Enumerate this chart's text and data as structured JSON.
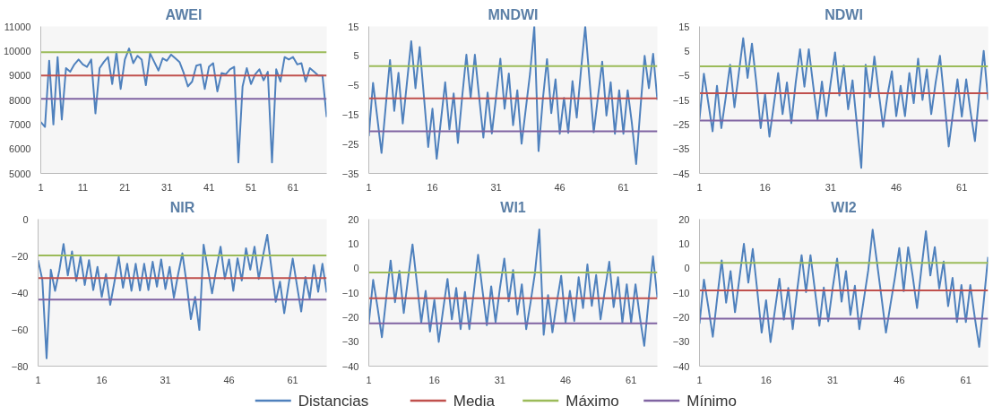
{
  "chart_data": [
    {
      "type": "line",
      "title": "AWEI",
      "legend": "bottom",
      "x": [
        1,
        2,
        3,
        4,
        5,
        6,
        7,
        8,
        9,
        10,
        11,
        12,
        13,
        14,
        15,
        16,
        17,
        18,
        19,
        20,
        21,
        22,
        23,
        24,
        25,
        26,
        27,
        28,
        29,
        30,
        31,
        32,
        33,
        34,
        35,
        36,
        37,
        38,
        39,
        40,
        41,
        42,
        43,
        44,
        45,
        46,
        47,
        48,
        49,
        50,
        51,
        52,
        53,
        54,
        55,
        56,
        57,
        58,
        59,
        60,
        61,
        62,
        63,
        64,
        65,
        66,
        67,
        68,
        69
      ],
      "xlim": [
        1,
        69
      ],
      "xticks": [
        1,
        11,
        21,
        31,
        41,
        51,
        61
      ],
      "ylim": [
        5000,
        11000
      ],
      "yticks": [
        5000,
        6000,
        7000,
        8000,
        9000,
        10000,
        11000
      ],
      "series": [
        {
          "name": "Distancias",
          "color": "#4f81bd",
          "values": [
            7100,
            6900,
            9600,
            7000,
            9750,
            7200,
            9300,
            9150,
            9450,
            9650,
            9450,
            9350,
            9650,
            7450,
            9300,
            9550,
            9750,
            8650,
            9950,
            8450,
            9650,
            10100,
            9500,
            9800,
            9650,
            8600,
            9900,
            9550,
            9200,
            9700,
            9600,
            9850,
            9700,
            9550,
            9100,
            8550,
            8750,
            9400,
            9450,
            8450,
            9350,
            9500,
            8350,
            9100,
            9050,
            9250,
            9350,
            5450,
            8550,
            9300,
            8650,
            9050,
            9250,
            8800,
            9150,
            5450,
            9250,
            8750,
            9750,
            9650,
            9750,
            9450,
            9500,
            8750,
            9300,
            9150,
            9000,
            9000,
            7300
          ]
        },
        {
          "name": "Media",
          "color": "#c0504d",
          "x": [
            1,
            69
          ],
          "values": [
            9000,
            9000
          ]
        },
        {
          "name": "Máximo",
          "color": "#9bbb59",
          "x": [
            1,
            69
          ],
          "values": [
            9950,
            9950
          ]
        },
        {
          "name": "Mínimo",
          "color": "#8064a2",
          "x": [
            1,
            69
          ],
          "values": [
            8050,
            8050
          ]
        }
      ]
    },
    {
      "type": "line",
      "title": "MNDWI",
      "x": [
        1,
        2,
        3,
        4,
        5,
        6,
        7,
        8,
        9,
        10,
        11,
        12,
        13,
        14,
        15,
        16,
        17,
        18,
        19,
        20,
        21,
        22,
        23,
        24,
        25,
        26,
        27,
        28,
        29,
        30,
        31,
        32,
        33,
        34,
        35,
        36,
        37,
        38,
        39,
        40,
        41,
        42,
        43,
        44,
        45,
        46,
        47,
        48,
        49,
        50,
        51,
        52,
        53,
        54,
        55,
        56,
        57,
        58,
        59,
        60,
        61,
        62,
        63,
        64,
        65,
        66,
        67,
        68,
        69
      ],
      "xlim": [
        1,
        69
      ],
      "xticks": [
        1,
        16,
        31,
        46,
        61
      ],
      "ylim": [
        -35,
        15
      ],
      "yticks": [
        -35,
        -25,
        -15,
        -5,
        5,
        15
      ],
      "series": [
        {
          "color": "#4f81bd",
          "values": [
            -22.3,
            -4.2,
            -16,
            -28,
            -12,
            3.6,
            -13.7,
            -0.8,
            -18,
            -4,
            10,
            -6,
            8,
            -9,
            -26,
            -13,
            -30,
            -17,
            -4,
            -20,
            -7.8,
            -24.6,
            -9,
            5.4,
            -9.3,
            5.4,
            -9,
            -22.8,
            -7.5,
            -21.4,
            -9,
            4,
            -13,
            -1,
            -18.6,
            -6.7,
            -24.9,
            -13,
            -1,
            15,
            -27.4,
            -10,
            3.9,
            -14.5,
            -3,
            -21.5,
            -9.3,
            -21.2,
            -3.6,
            -16,
            0,
            15,
            -3,
            -21,
            -9,
            3,
            -15.3,
            -4,
            -21.5,
            -6.7,
            -21.5,
            -6.7,
            -18,
            -31.8,
            -13,
            5,
            -6,
            5.7,
            -10
          ]
        },
        {
          "color": "#c0504d",
          "x": [
            1,
            69
          ],
          "values": [
            -9.5,
            -9.5
          ]
        },
        {
          "color": "#9bbb59",
          "x": [
            1,
            69
          ],
          "values": [
            1.5,
            1.5
          ]
        },
        {
          "color": "#8064a2",
          "x": [
            1,
            69
          ],
          "values": [
            -20.7,
            -20.7
          ]
        }
      ]
    },
    {
      "type": "line",
      "title": "NDWI",
      "x": [
        1,
        2,
        3,
        4,
        5,
        6,
        7,
        8,
        9,
        10,
        11,
        12,
        13,
        14,
        15,
        16,
        17,
        18,
        19,
        20,
        21,
        22,
        23,
        24,
        25,
        26,
        27,
        28,
        29,
        30,
        31,
        32,
        33,
        34,
        35,
        36,
        37,
        38,
        39,
        40,
        41,
        42,
        43,
        44,
        45,
        46,
        47,
        48,
        49,
        50,
        51,
        52,
        53,
        54,
        55,
        56,
        57,
        58,
        59,
        60,
        61,
        62,
        63,
        64,
        65,
        66,
        67
      ],
      "xlim": [
        1,
        67
      ],
      "xticks": [
        1,
        16,
        31,
        46,
        61
      ],
      "ylim": [
        -45,
        15
      ],
      "yticks": [
        -45,
        -35,
        -25,
        -15,
        -5,
        5,
        15
      ],
      "series": [
        {
          "color": "#4f81bd",
          "values": [
            -22.9,
            -4.3,
            -16,
            -27.8,
            -9.2,
            -26.5,
            -14,
            -0.6,
            -18,
            -4,
            10.2,
            -6,
            8,
            -8,
            -26.5,
            -12.5,
            -30,
            -17,
            -4,
            -20.8,
            -7.9,
            -24.5,
            -8,
            5.7,
            -9.6,
            5.7,
            -9,
            -22.9,
            -7.5,
            -21.6,
            -8,
            4.4,
            -13.2,
            -0.9,
            -18.8,
            -7,
            -25,
            -42.7,
            -0.6,
            -13.9,
            2.7,
            -12,
            -26,
            -13,
            -3.3,
            -21.6,
            -9.2,
            -21.6,
            -4,
            -16.3,
            1.8,
            -15,
            -2.6,
            -20.8,
            -8,
            3,
            -15,
            -34,
            -20,
            -6.6,
            -21.8,
            -6.6,
            -20,
            -31.8,
            -12,
            5,
            -15
          ]
        },
        {
          "color": "#c0504d",
          "x": [
            1,
            67
          ],
          "values": [
            -12.3,
            -12.3
          ]
        },
        {
          "color": "#9bbb59",
          "x": [
            1,
            67
          ],
          "values": [
            -1.3,
            -1.3
          ]
        },
        {
          "color": "#8064a2",
          "x": [
            1,
            67
          ],
          "values": [
            -23.4,
            -23.4
          ]
        }
      ]
    },
    {
      "type": "line",
      "title": "NIR",
      "x": [
        1,
        2,
        3,
        4,
        5,
        6,
        7,
        8,
        9,
        10,
        11,
        12,
        13,
        14,
        15,
        16,
        17,
        18,
        19,
        20,
        21,
        22,
        23,
        24,
        25,
        26,
        27,
        28,
        29,
        30,
        31,
        32,
        33,
        34,
        35,
        36,
        37,
        38,
        39,
        40,
        41,
        42,
        43,
        44,
        45,
        46,
        47,
        48,
        49,
        50,
        51,
        52,
        53,
        54,
        55,
        56,
        57,
        58,
        59,
        60,
        61,
        62,
        63,
        64,
        65,
        66,
        67,
        68,
        69
      ],
      "xlim": [
        1,
        69
      ],
      "xticks": [
        1,
        16,
        31,
        46,
        61
      ],
      "ylim": [
        -80,
        0
      ],
      "yticks": [
        -80,
        -60,
        -40,
        -20,
        0
      ],
      "series": [
        {
          "color": "#4f81bd",
          "values": [
            -22.3,
            -33,
            -75.7,
            -27.5,
            -39,
            -28,
            -13.5,
            -30.6,
            -17.6,
            -33.6,
            -20.4,
            -35.8,
            -22.3,
            -38.6,
            -26,
            -42.3,
            -29.9,
            -46.6,
            -34,
            -20.6,
            -37.3,
            -24.3,
            -39,
            -24.3,
            -38.8,
            -24.3,
            -38.6,
            -23.2,
            -36.7,
            -21.9,
            -38,
            -26,
            -42.7,
            -30,
            -18.6,
            -35,
            -54.4,
            -42.3,
            -60.3,
            -13.9,
            -27,
            -40.4,
            -27,
            -15,
            -32.5,
            -21.9,
            -39,
            -21.3,
            -33.4,
            -15.8,
            -27.5,
            -15,
            -32.5,
            -20,
            -8.5,
            -27,
            -45,
            -34,
            -51.2,
            -36,
            -21.5,
            -36,
            -50.3,
            -31.5,
            -43.2,
            -25,
            -39.5,
            -24.3,
            -39.9
          ]
        },
        {
          "color": "#c0504d",
          "x": [
            1,
            69
          ],
          "values": [
            -32.1,
            -32.1
          ]
        },
        {
          "color": "#9bbb59",
          "x": [
            1,
            69
          ],
          "values": [
            -19.7,
            -19.7
          ]
        },
        {
          "color": "#8064a2",
          "x": [
            1,
            69
          ],
          "values": [
            -43.8,
            -43.8
          ]
        }
      ]
    },
    {
      "type": "line",
      "title": "WI1",
      "x": [
        1,
        2,
        3,
        4,
        5,
        6,
        7,
        8,
        9,
        10,
        11,
        12,
        13,
        14,
        15,
        16,
        17,
        18,
        19,
        20,
        21,
        22,
        23,
        24,
        25,
        26,
        27,
        28,
        29,
        30,
        31,
        32,
        33,
        34,
        35,
        36,
        37,
        38,
        39,
        40,
        41,
        42,
        43,
        44,
        45,
        46,
        47,
        48,
        49,
        50,
        51,
        52,
        53,
        54,
        55,
        56,
        57,
        58,
        59,
        60,
        61,
        62,
        63,
        64,
        65,
        66,
        67
      ],
      "xlim": [
        1,
        67
      ],
      "xticks": [
        1,
        16,
        31,
        46,
        61
      ],
      "ylim": [
        -40,
        20
      ],
      "yticks": [
        -40,
        -30,
        -20,
        -10,
        0,
        10,
        20
      ],
      "series": [
        {
          "color": "#4f81bd",
          "values": [
            -22.5,
            -4.8,
            -16,
            -28.2,
            -12,
            3.1,
            -13.9,
            -1.1,
            -18.3,
            -4,
            9.7,
            -6,
            -22.2,
            -9.3,
            -25.9,
            -13,
            -30.1,
            -17,
            -4.4,
            -20.9,
            -8.1,
            -24.9,
            -9.7,
            -24.9,
            -10,
            5.5,
            -9,
            -23.3,
            -7.4,
            -22,
            -8,
            3.9,
            -13.6,
            -0.8,
            -18.9,
            -6.6,
            -24.9,
            -14,
            -2,
            15.8,
            -27.2,
            -11,
            -26.2,
            -14,
            -3.1,
            -22.2,
            -9.3,
            -21.6,
            -3.7,
            -16.3,
            1.5,
            -15.4,
            -2.8,
            -20.9,
            -9,
            2.6,
            -15.9,
            -3.7,
            -22.2,
            -6.6,
            -22.2,
            -6.6,
            -20,
            -31.7,
            -13,
            4.8,
            -12
          ]
        },
        {
          "color": "#c0504d",
          "x": [
            1,
            67
          ],
          "values": [
            -12.3,
            -12.3
          ]
        },
        {
          "color": "#9bbb59",
          "x": [
            1,
            67
          ],
          "values": [
            -1.8,
            -1.8
          ]
        },
        {
          "color": "#8064a2",
          "x": [
            1,
            67
          ],
          "values": [
            -22.5,
            -22.5
          ]
        }
      ]
    },
    {
      "type": "line",
      "title": "WI2",
      "x": [
        1,
        2,
        3,
        4,
        5,
        6,
        7,
        8,
        9,
        10,
        11,
        12,
        13,
        14,
        15,
        16,
        17,
        18,
        19,
        20,
        21,
        22,
        23,
        24,
        25,
        26,
        27,
        28,
        29,
        30,
        31,
        32,
        33,
        34,
        35,
        36,
        37,
        38,
        39,
        40,
        41,
        42,
        43,
        44,
        45,
        46,
        47,
        48,
        49,
        50,
        51,
        52,
        53,
        54,
        55,
        56,
        57,
        58,
        59,
        60,
        61,
        62,
        63,
        64,
        65,
        66
      ],
      "xlim": [
        1,
        66
      ],
      "xticks": [
        1,
        16,
        31,
        46,
        61
      ],
      "ylim": [
        -40,
        20
      ],
      "yticks": [
        -40,
        -30,
        -20,
        -10,
        0,
        10,
        20
      ],
      "series": [
        {
          "color": "#4f81bd",
          "values": [
            -22.7,
            -4.7,
            -16,
            -28,
            -12,
            3.2,
            -14.1,
            -1.2,
            -18,
            -4,
            9.9,
            -5.9,
            7.8,
            -9,
            -26.3,
            -13.1,
            -30.2,
            -17,
            -4.3,
            -21,
            -8.1,
            -24.9,
            -9,
            5.3,
            -9.8,
            5.3,
            -9,
            -23.5,
            -7.9,
            -21.7,
            -8,
            3.9,
            -13.7,
            -1.2,
            -19.1,
            -7.2,
            -24.9,
            -13,
            -1,
            15.7,
            2,
            -12,
            -26.3,
            -15,
            -4,
            8.2,
            -9.4,
            8.5,
            -3,
            -16.3,
            0,
            15.1,
            -3,
            8.6,
            -8.3,
            2.7,
            -15.5,
            -4,
            -22,
            -6.9,
            -22,
            -6.9,
            -20,
            -32.1,
            -14,
            4.6
          ]
        },
        {
          "color": "#c0504d",
          "x": [
            1,
            66
          ],
          "values": [
            -9.1,
            -9.1
          ]
        },
        {
          "color": "#9bbb59",
          "x": [
            1,
            66
          ],
          "values": [
            2.2,
            2.2
          ]
        },
        {
          "color": "#8064a2",
          "x": [
            1,
            66
          ],
          "values": [
            -20.6,
            -20.6
          ]
        }
      ]
    }
  ]
}
